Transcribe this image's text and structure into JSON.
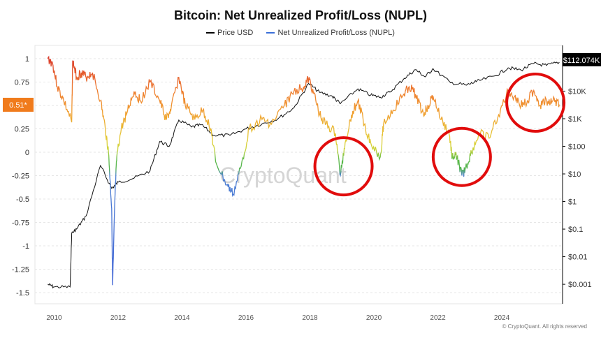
{
  "title": "Bitcoin: Net Unrealized Profit/Loss (NUPL)",
  "credit": "© CryptoQuant. All rights reserved",
  "watermark": "CryptoQuant",
  "colors": {
    "price": "#000000",
    "nupl_legend": "#3b6fd8",
    "red_circle": "#e10c0c",
    "left_marker": "#f07b1c",
    "right_marker": "#000000"
  },
  "chart_data": {
    "type": "line",
    "title": "Bitcoin: Net Unrealized Profit/Loss (NUPL)",
    "legend_position": "top-center",
    "grid": "horizontal-dashed",
    "x_range": [
      2009.4,
      2025.9
    ],
    "x_ticks": [
      "2010",
      "2012",
      "2014",
      "2016",
      "2018",
      "2020",
      "2022",
      "2024"
    ],
    "left_axis": {
      "ticks": [
        "1",
        "0.75",
        "0.5",
        "0.25",
        "0",
        "-0.25",
        "-0.5",
        "-0.75",
        "-1",
        "-1.25",
        "-1.5"
      ],
      "range": [
        -1.5,
        1
      ]
    },
    "right_axis": {
      "scale": "log",
      "ticks": [
        "$10K",
        "$1K",
        "$100",
        "$10",
        "$1",
        "$0.1",
        "$0.01",
        "$0.001"
      ],
      "range": [
        0.0005,
        150000
      ]
    },
    "current_nupl_label": "0.51*",
    "current_price_label": "$112.074K",
    "series": [
      {
        "name": "Price USD",
        "axis": "right",
        "x": [
          2009.8,
          2010.0,
          2010.5,
          2010.55,
          2010.7,
          2011.0,
          2011.45,
          2011.8,
          2012.0,
          2012.5,
          2013.0,
          2013.3,
          2013.6,
          2013.9,
          2014.3,
          2014.6,
          2015.0,
          2015.5,
          2016.0,
          2016.5,
          2017.0,
          2017.5,
          2017.96,
          2018.3,
          2018.7,
          2018.95,
          2019.5,
          2019.9,
          2020.2,
          2020.5,
          2020.95,
          2021.3,
          2021.6,
          2021.85,
          2022.4,
          2022.9,
          2023.2,
          2023.8,
          2024.2,
          2024.6,
          2025.0,
          2025.4,
          2025.8
        ],
        "values": [
          0.001,
          0.0008,
          0.0008,
          0.07,
          0.1,
          0.3,
          20,
          3,
          5,
          7,
          13,
          150,
          100,
          900,
          500,
          600,
          250,
          250,
          430,
          650,
          1000,
          2500,
          19000,
          9000,
          6500,
          3500,
          12000,
          7200,
          6000,
          9200,
          29000,
          60000,
          33000,
          65000,
          20000,
          16500,
          22000,
          36000,
          70000,
          58000,
          100000,
          85000,
          112074
        ]
      },
      {
        "name": "Net Unrealized Profit/Loss (NUPL)",
        "axis": "left",
        "gradient": "value-colored (blue < 0 < green < yellow < orange < red)",
        "x": [
          2009.8,
          2009.95,
          2010.1,
          2010.3,
          2010.55,
          2010.58,
          2010.7,
          2010.85,
          2011.0,
          2011.2,
          2011.45,
          2011.6,
          2011.7,
          2011.8,
          2011.83,
          2011.9,
          2011.96,
          2012.1,
          2012.3,
          2012.5,
          2012.7,
          2013.0,
          2013.3,
          2013.5,
          2013.65,
          2013.9,
          2014.1,
          2014.4,
          2014.65,
          2014.9,
          2015.05,
          2015.4,
          2015.6,
          2015.85,
          2016.1,
          2016.5,
          2016.8,
          2017.2,
          2017.5,
          2017.8,
          2017.96,
          2018.1,
          2018.3,
          2018.5,
          2018.8,
          2018.95,
          2019.1,
          2019.3,
          2019.5,
          2019.7,
          2019.9,
          2020.2,
          2020.3,
          2020.6,
          2020.9,
          2021.1,
          2021.3,
          2021.55,
          2021.7,
          2021.85,
          2022.1,
          2022.35,
          2022.45,
          2022.6,
          2022.75,
          2022.9,
          2023.05,
          2023.3,
          2023.6,
          2023.9,
          2024.2,
          2024.4,
          2024.6,
          2024.8,
          2025.0,
          2025.2,
          2025.4,
          2025.6,
          2025.8
        ],
        "values": [
          1.0,
          0.95,
          0.7,
          0.55,
          0.32,
          0.98,
          0.8,
          0.85,
          0.8,
          0.85,
          0.55,
          0.25,
          0.0,
          -0.6,
          -1.42,
          -0.5,
          -0.05,
          0.25,
          0.45,
          0.65,
          0.55,
          0.75,
          0.55,
          0.35,
          0.45,
          0.8,
          0.5,
          0.35,
          0.45,
          0.25,
          -0.1,
          -0.35,
          -0.45,
          -0.15,
          0.25,
          0.35,
          0.3,
          0.5,
          0.65,
          0.7,
          0.78,
          0.65,
          0.4,
          0.3,
          0.2,
          -0.25,
          0.1,
          0.4,
          0.55,
          0.3,
          0.1,
          -0.05,
          0.3,
          0.45,
          0.6,
          0.7,
          0.62,
          0.4,
          0.5,
          0.6,
          0.35,
          0.2,
          -0.05,
          -0.05,
          -0.25,
          -0.15,
          0.0,
          0.2,
          0.15,
          0.4,
          0.65,
          0.6,
          0.5,
          0.55,
          0.66,
          0.5,
          0.55,
          0.55,
          0.51
        ]
      }
    ],
    "annotations": [
      {
        "type": "red-circle",
        "center_x": 2019.05,
        "center_y": -0.15
      },
      {
        "type": "red-circle",
        "center_x": 2022.75,
        "center_y": -0.05
      },
      {
        "type": "red-circle",
        "center_x": 2025.05,
        "center_y": 0.53
      }
    ]
  }
}
